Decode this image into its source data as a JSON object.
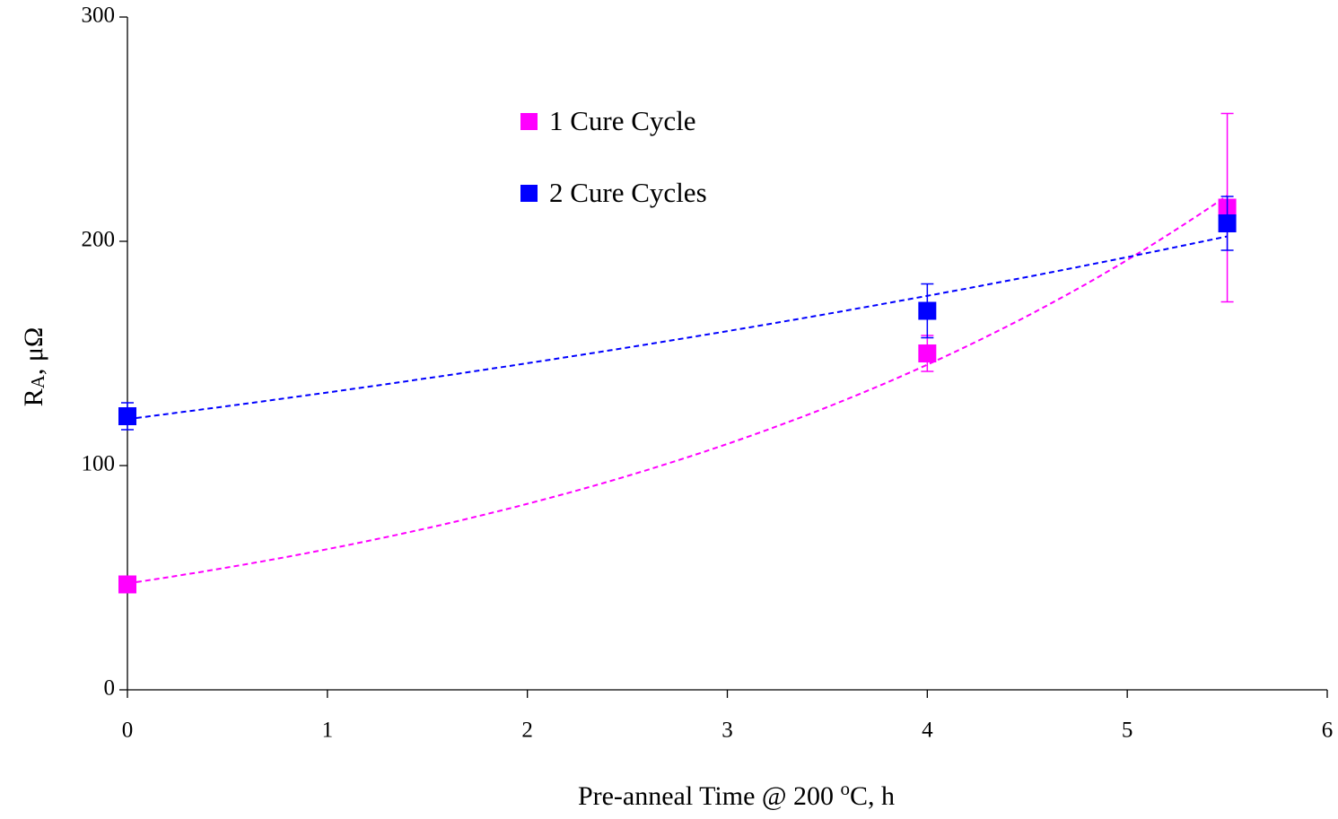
{
  "chart_data": {
    "type": "scatter",
    "xlabel_parts": [
      {
        "text": "Pre-anneal Time @ 200 "
      },
      {
        "text": "o",
        "script": "super"
      },
      {
        "text": "C, h"
      }
    ],
    "ylabel_parts": [
      {
        "text": "R"
      },
      {
        "text": "A",
        "script": "sub"
      },
      {
        "text": ", μΩ"
      }
    ],
    "xlim": [
      0,
      6
    ],
    "xticks": [
      0,
      1,
      2,
      3,
      4,
      5,
      6
    ],
    "ylim": [
      0,
      300
    ],
    "yticks": [
      0,
      100,
      200,
      300
    ],
    "grid": false,
    "legend": "upper center",
    "trendline": "exponential",
    "series": [
      {
        "name": "1 Cure Cycle",
        "color": "#ff00ff",
        "x": [
          0,
          4,
          5.5
        ],
        "values": [
          47,
          150,
          215
        ],
        "errors": [
          null,
          8,
          42
        ]
      },
      {
        "name": "2 Cure Cycles",
        "color": "#0000ff",
        "x": [
          0,
          4,
          5.5
        ],
        "values": [
          122,
          169,
          208
        ],
        "errors": [
          6,
          12,
          12
        ]
      }
    ]
  }
}
